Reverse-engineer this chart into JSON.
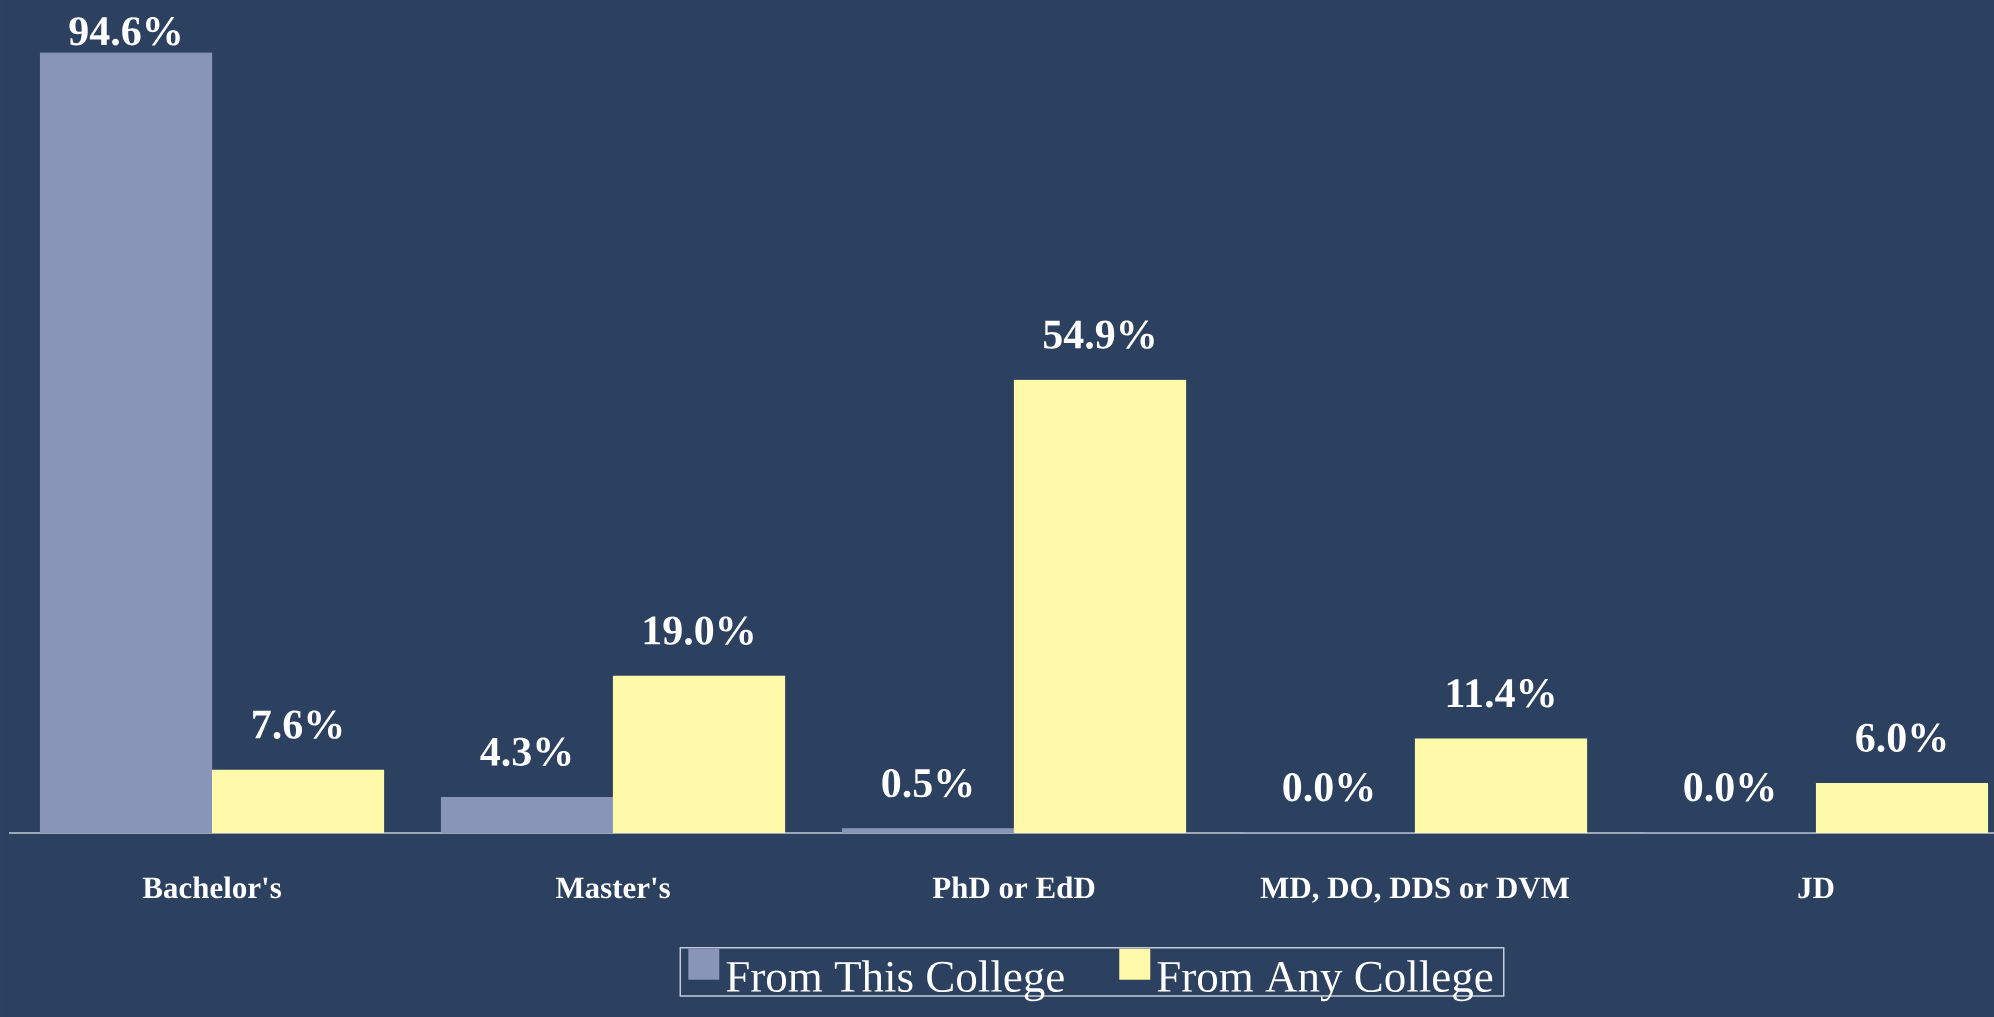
{
  "chart_data": {
    "type": "bar",
    "categories": [
      "Bachelor's",
      "Master's",
      "PhD or EdD",
      "MD, DO, DDS or DVM",
      "JD"
    ],
    "series": [
      {
        "name": "From This College",
        "color": "#8994b9",
        "values": [
          94.6,
          4.3,
          0.5,
          0.0,
          0.0
        ],
        "value_labels": [
          "94.6%",
          "4.3%",
          "0.5%",
          "0.0%",
          "0.0%"
        ]
      },
      {
        "name": "From Any College",
        "color": "#fffaaa",
        "values": [
          7.6,
          19.0,
          54.9,
          11.4,
          6.0
        ],
        "value_labels": [
          "7.6%",
          "19.0%",
          "54.9%",
          "11.4%",
          "6.0%"
        ]
      }
    ],
    "legend": "bottom",
    "tick_labels": "x"
  }
}
